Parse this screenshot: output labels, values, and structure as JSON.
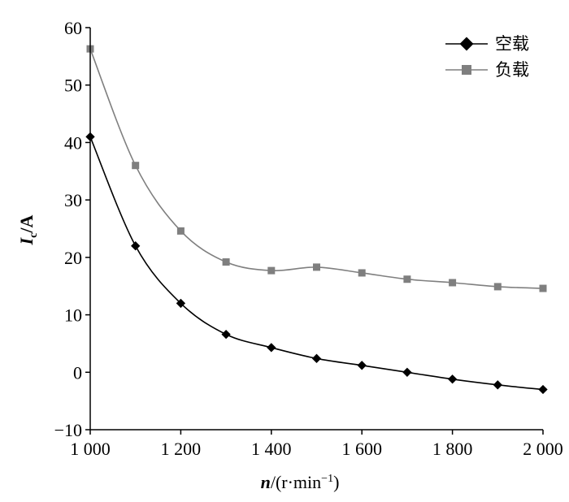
{
  "chart_data": {
    "type": "line",
    "xlabel": "n/(r·min⁻¹)",
    "xlabel_parts": {
      "var": "n",
      "unit": "/(r·min",
      "exp": "−1",
      "close": ")"
    },
    "ylabel": "Ic/A",
    "ylabel_parts": {
      "var": "I",
      "sub": "c",
      "unit": "/A"
    },
    "xlim": [
      1000,
      2000
    ],
    "ylim": [
      -10,
      60
    ],
    "x_ticks": [
      1000,
      1200,
      1400,
      1600,
      1800,
      2000
    ],
    "x_tick_labels": [
      "1 000",
      "1 200",
      "1 400",
      "1 600",
      "1 800",
      "2 000"
    ],
    "y_ticks": [
      -10,
      0,
      10,
      20,
      30,
      40,
      50,
      60
    ],
    "y_tick_labels": [
      "−10",
      "0",
      "10",
      "20",
      "30",
      "40",
      "50",
      "60"
    ],
    "grid": false,
    "legend_position": "top-right",
    "x": [
      1000,
      1100,
      1200,
      1300,
      1400,
      1500,
      1600,
      1700,
      1800,
      1900,
      2000
    ],
    "series": [
      {
        "name": "空载",
        "marker": "diamond",
        "color": "#000000",
        "values": [
          41.0,
          22.0,
          12.0,
          6.6,
          4.3,
          2.4,
          1.2,
          0.0,
          -1.2,
          -2.2,
          -3.0
        ]
      },
      {
        "name": "负载",
        "marker": "square",
        "color": "#7f7f7f",
        "values": [
          56.3,
          36.0,
          24.6,
          19.2,
          17.7,
          18.3,
          17.3,
          16.2,
          15.6,
          14.9,
          14.6
        ]
      }
    ]
  }
}
